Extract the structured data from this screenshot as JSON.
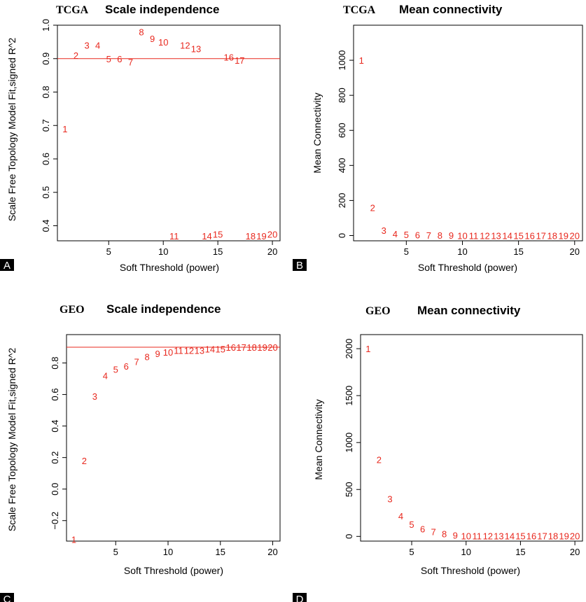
{
  "colors": {
    "points": "#e8281e",
    "cutoff_line": "#e8281e",
    "axis": "#000000",
    "letter_box": "#000000"
  },
  "chart_data": [
    {
      "type": "scatter",
      "panel": "A",
      "source": "TCGA",
      "title": "Scale independence",
      "xlabel": "Soft Threshold (power)",
      "ylabel": "Scale Free Topology Model Fit,signed R^2",
      "xlim": [
        0.3,
        20.7
      ],
      "ylim": [
        0.355,
        1.0
      ],
      "xticks": [
        5,
        10,
        15,
        20
      ],
      "yticks": [
        0.4,
        0.5,
        0.6,
        0.7,
        0.8,
        0.9,
        1.0
      ],
      "hline": 0.9,
      "x": [
        1,
        2,
        3,
        4,
        5,
        6,
        7,
        8,
        9,
        10,
        11,
        12,
        13,
        14,
        15,
        16,
        17,
        18,
        19,
        20
      ],
      "y": [
        0.69,
        0.91,
        0.94,
        0.94,
        0.9,
        0.9,
        0.89,
        0.98,
        0.96,
        0.95,
        0.37,
        0.94,
        0.93,
        0.37,
        0.375,
        0.905,
        0.895,
        0.37,
        0.37,
        0.375
      ],
      "labels": [
        "1",
        "2",
        "3",
        "4",
        "5",
        "6",
        "7",
        "8",
        "9",
        "10",
        "11",
        "12",
        "13",
        "14",
        "15",
        "16",
        "17",
        "18",
        "19",
        "20"
      ]
    },
    {
      "type": "scatter",
      "panel": "B",
      "source": "TCGA",
      "title": "Mean connectivity",
      "xlabel": "Soft Threshold (power)",
      "ylabel": "Mean Connectivity",
      "xlim": [
        0.3,
        20.7
      ],
      "ylim": [
        -30,
        1200
      ],
      "xticks": [
        5,
        10,
        15,
        20
      ],
      "yticks": [
        0,
        200,
        400,
        600,
        800,
        1000
      ],
      "x": [
        1,
        2,
        3,
        4,
        5,
        6,
        7,
        8,
        9,
        10,
        11,
        12,
        13,
        14,
        15,
        16,
        17,
        18,
        19,
        20
      ],
      "y": [
        1000,
        160,
        30,
        10,
        5,
        3,
        2,
        1,
        1,
        0,
        0,
        0,
        0,
        0,
        0,
        0,
        0,
        0,
        0,
        0
      ],
      "labels": [
        "1",
        "2",
        "3",
        "4",
        "5",
        "6",
        "7",
        "8",
        "9",
        "10",
        "11",
        "12",
        "13",
        "14",
        "15",
        "16",
        "17",
        "18",
        "19",
        "20"
      ]
    },
    {
      "type": "scatter",
      "panel": "C",
      "source": "GEO",
      "title": "Scale independence",
      "xlabel": "Soft Threshold (power)",
      "ylabel": "Scale Free Topology Model Fit,signed R^2",
      "xlim": [
        0.3,
        20.7
      ],
      "ylim": [
        -0.33,
        0.98
      ],
      "xticks": [
        5,
        10,
        15,
        20
      ],
      "yticks": [
        -0.2,
        0.0,
        0.2,
        0.4,
        0.6,
        0.8
      ],
      "hline": 0.9,
      "x": [
        1,
        2,
        3,
        4,
        5,
        6,
        7,
        8,
        9,
        10,
        11,
        12,
        13,
        14,
        15,
        16,
        17,
        18,
        19,
        20
      ],
      "y": [
        -0.32,
        0.18,
        0.59,
        0.72,
        0.76,
        0.78,
        0.81,
        0.84,
        0.86,
        0.87,
        0.88,
        0.88,
        0.88,
        0.89,
        0.89,
        0.9,
        0.9,
        0.9,
        0.9,
        0.9
      ],
      "labels": [
        "1",
        "2",
        "3",
        "4",
        "5",
        "6",
        "7",
        "8",
        "9",
        "10",
        "11",
        "12",
        "13",
        "14",
        "15",
        "16",
        "17",
        "18",
        "19",
        "20"
      ]
    },
    {
      "type": "scatter",
      "panel": "D",
      "source": "GEO",
      "title": "Mean connectivity",
      "xlabel": "Soft Threshold (power)",
      "ylabel": "Mean Connectivity",
      "xlim": [
        0.3,
        20.7
      ],
      "ylim": [
        -50,
        2150
      ],
      "xticks": [
        5,
        10,
        15,
        20
      ],
      "yticks": [
        0,
        500,
        1000,
        1500,
        2000
      ],
      "x": [
        1,
        2,
        3,
        4,
        5,
        6,
        7,
        8,
        9,
        10,
        11,
        12,
        13,
        14,
        15,
        16,
        17,
        18,
        19,
        20
      ],
      "y": [
        2000,
        820,
        400,
        220,
        130,
        80,
        50,
        30,
        15,
        5,
        5,
        5,
        5,
        5,
        5,
        5,
        5,
        5,
        5,
        5
      ],
      "labels": [
        "1",
        "2",
        "3",
        "4",
        "5",
        "6",
        "7",
        "8",
        "9",
        "10",
        "11",
        "12",
        "13",
        "14",
        "15",
        "16",
        "17",
        "18",
        "19",
        "20"
      ]
    }
  ]
}
